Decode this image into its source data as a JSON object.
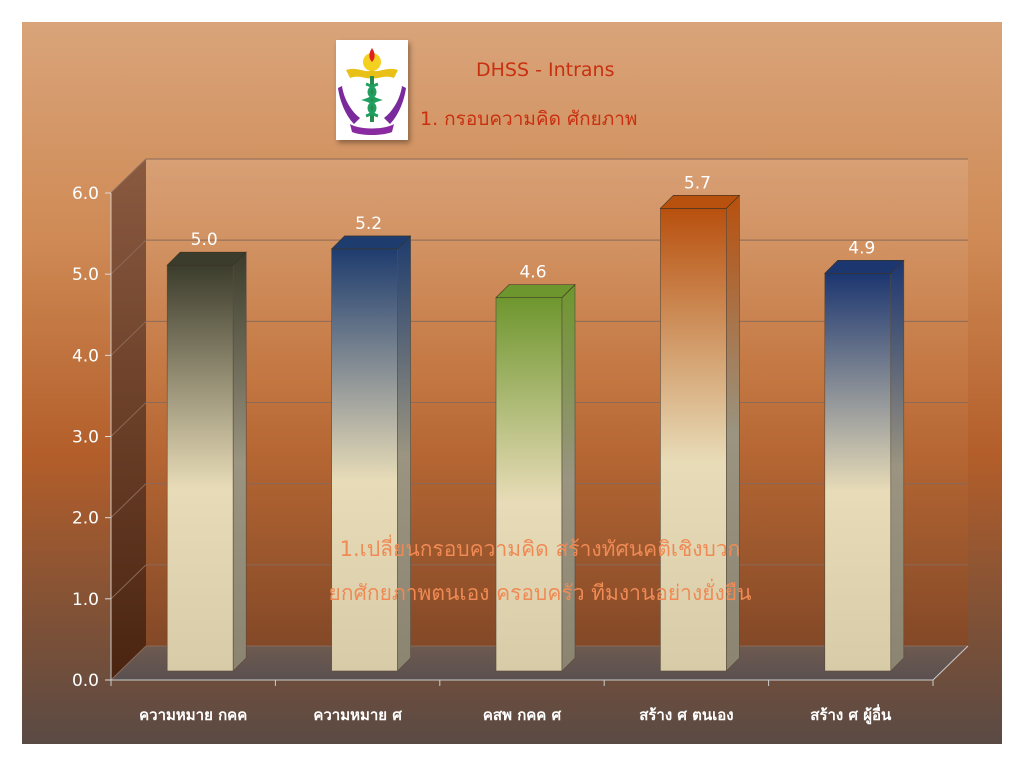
{
  "slide": {
    "title_line1": "DHSS - Intrans",
    "title_line2": "1. กรอบความคิด ศักยภาพ",
    "note_line1": "1.เปลี่ยนกรอบความคิด สร้างทัศนคติเชิงบวก",
    "note_line2": "ยกศักยภาพตนเอง ครอบครัว ทีมงานอย่างยั่งยืน",
    "logo_icon": "caduceus-emblem-icon"
  },
  "chart_data": {
    "type": "bar",
    "title": "",
    "xlabel": "",
    "ylabel": "",
    "categories": [
      "ความหมาย กคค",
      "ความหมาย ศ",
      "คสพ กคค ศ",
      "สร้าง ศ ตนเอง",
      "สร้าง ศ ผู้อื่น"
    ],
    "values": [
      5.0,
      5.2,
      4.6,
      5.7,
      4.9
    ],
    "value_labels": [
      "5.0",
      "5.2",
      "4.6",
      "5.7",
      "4.9"
    ],
    "ylim": [
      0,
      6
    ],
    "yticks": [
      "0.0",
      "1.0",
      "2.0",
      "3.0",
      "4.0",
      "5.0",
      "6.0"
    ],
    "grid": true,
    "bar_top_colors": [
      "#3c3c2c",
      "#1e3c6e",
      "#6e962e",
      "#b8500e",
      "#1c3670"
    ],
    "bar_bottom_color": "#e8dcb8"
  }
}
